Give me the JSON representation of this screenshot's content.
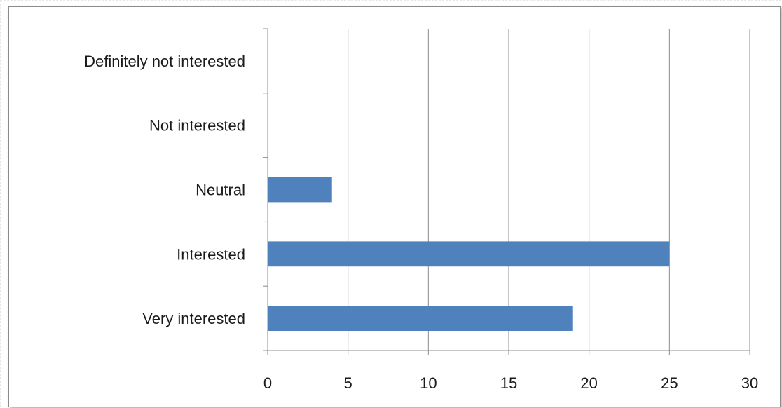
{
  "chart_data": {
    "type": "bar",
    "orientation": "horizontal",
    "categories": [
      "Definitely not interested",
      "Not interested",
      "Neutral",
      "Interested",
      "Very interested"
    ],
    "values": [
      0,
      0,
      4,
      25,
      19
    ],
    "title": "",
    "xlabel": "",
    "ylabel": "",
    "xlim": [
      0,
      30
    ],
    "x_ticks": [
      0,
      5,
      10,
      15,
      20,
      25,
      30
    ],
    "grid": "vertical",
    "legend": "none",
    "bar_color": "#4F81BD",
    "grid_color": "#8C8C8C"
  }
}
